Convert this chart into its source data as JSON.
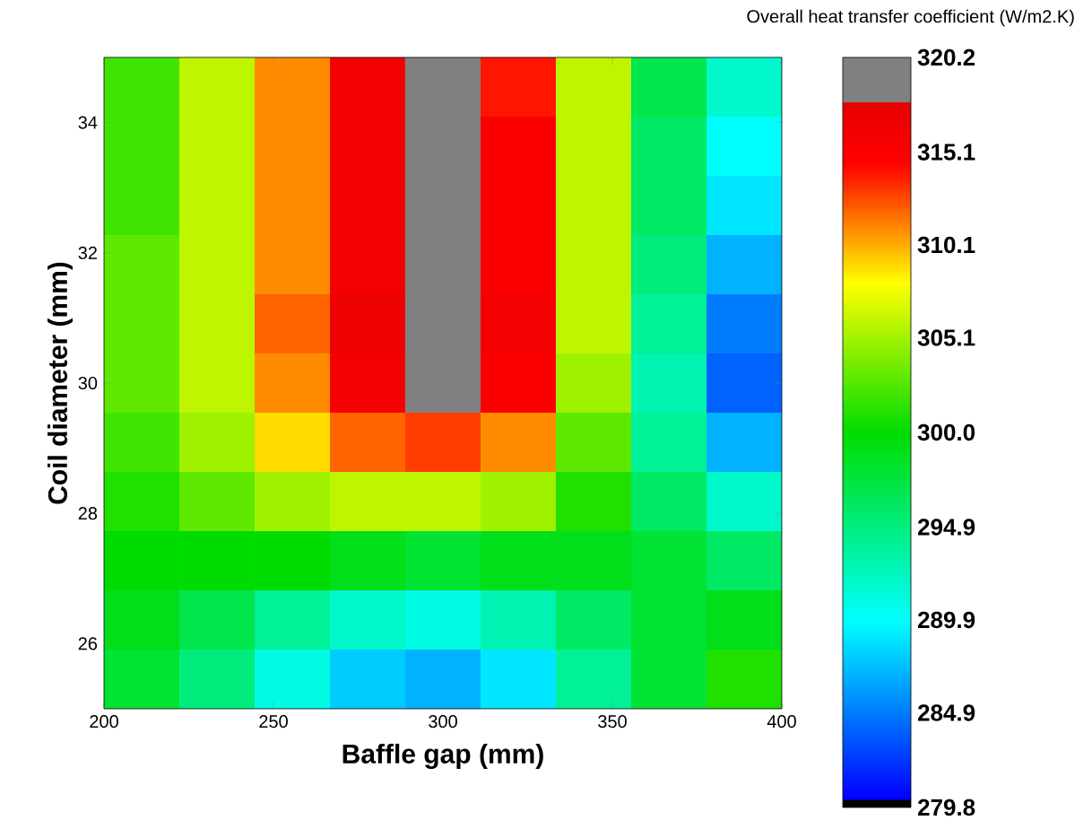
{
  "chart_data": {
    "type": "heatmap",
    "xlabel": "Baffle gap (mm)",
    "ylabel": "Coil diameter (mm)",
    "clabel": "Overall heat transfer coefficient (W/m2.K)",
    "xlim": [
      200,
      400
    ],
    "ylim": [
      25,
      35
    ],
    "xticks": [
      200,
      250,
      300,
      350,
      400
    ],
    "yticks": [
      26,
      28,
      30,
      32,
      34
    ],
    "cells": [
      [
        302,
        306,
        311,
        316,
        318,
        314,
        306,
        297,
        292
      ],
      [
        302,
        306,
        311,
        316,
        319,
        315,
        306,
        296,
        290
      ],
      [
        302,
        306,
        311,
        316,
        320,
        315,
        306,
        296,
        289
      ],
      [
        303,
        306,
        311,
        316,
        320,
        315,
        306,
        295,
        287
      ],
      [
        303,
        306,
        312,
        317,
        320,
        316,
        306,
        294,
        285
      ],
      [
        303,
        306,
        311,
        316,
        318,
        315,
        305,
        293,
        284
      ],
      [
        302,
        305,
        309,
        312,
        313,
        311,
        303,
        294,
        287
      ],
      [
        301,
        303,
        305,
        306,
        306,
        305,
        301,
        296,
        292
      ],
      [
        300,
        300,
        300,
        299,
        298,
        299,
        299,
        298,
        296
      ],
      [
        299,
        297,
        294,
        292,
        291,
        293,
        296,
        298,
        299
      ],
      [
        298,
        295,
        291,
        288,
        287,
        289,
        294,
        298,
        301
      ]
    ],
    "clim": [
      279.8,
      320.2
    ],
    "cticks": [
      279.8,
      284.9,
      289.9,
      294.9,
      {
        "value": 300,
        "label": "300.0"
      },
      305.1,
      310.1,
      315.1,
      320.2
    ]
  }
}
